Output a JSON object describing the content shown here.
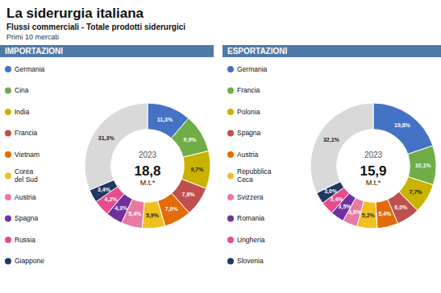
{
  "title": "La siderurgia italiana",
  "subtitle": "Flussi commerciali - Totale prodotti siderurgici",
  "note": "Primi 10 mercati",
  "chart_data": [
    {
      "type": "pie",
      "title": "IMPORTAZIONI",
      "annotations": [
        "2023",
        "18,8",
        "M.t.*"
      ],
      "categories": [
        "Germania",
        "Cina",
        "India",
        "Francia",
        "Vietnam",
        "Corea\ndel Sud",
        "Austria",
        "Spagna",
        "Russia",
        "Giappone",
        null
      ],
      "values": [
        11.3,
        9.9,
        9.7,
        7.6,
        7.0,
        5.9,
        5.4,
        4.3,
        4.2,
        3.4,
        31.3
      ],
      "value_labels": [
        "11,3%",
        "9,9%",
        "9,7%",
        "7,6%",
        "7,0%",
        "5,9%",
        "5,4%",
        "4,3%",
        "4,2%",
        "3,4%",
        "31,3%"
      ],
      "colors": [
        "#4472c4",
        "#70ad47",
        "#c9b300",
        "#c0504d",
        "#e36c09",
        "#f0c020",
        "#e879a0",
        "#7030a0",
        "#e84c8b",
        "#1f3864",
        "#d9d9d9"
      ],
      "data_labels": true,
      "legend": "left"
    },
    {
      "type": "pie",
      "title": "ESPORTAZIONI",
      "annotations": [
        "2023",
        "15,9",
        "M.t.*"
      ],
      "categories": [
        "Germania",
        "Francia",
        "Polonia",
        "Spagna",
        "Austria",
        "Repubblica\nCeca",
        "Svizzera",
        "Romania",
        "Ungheria",
        "Slovenia",
        null
      ],
      "values": [
        19.8,
        10.1,
        7.7,
        6.0,
        5.4,
        5.2,
        3.8,
        3.5,
        3.4,
        3.0,
        32.1
      ],
      "value_labels": [
        "19,8%",
        "10,1%",
        "7,7%",
        "6,0%",
        "5,4%",
        "5,2%",
        "3,8%",
        "3,5%",
        "3,4%",
        "3,0%",
        "32,1%"
      ],
      "colors": [
        "#4472c4",
        "#70ad47",
        "#c9b300",
        "#c0504d",
        "#e36c09",
        "#f0c020",
        "#e879a0",
        "#7030a0",
        "#e84c8b",
        "#1f3864",
        "#d9d9d9"
      ],
      "data_labels": true,
      "legend": "left"
    }
  ]
}
